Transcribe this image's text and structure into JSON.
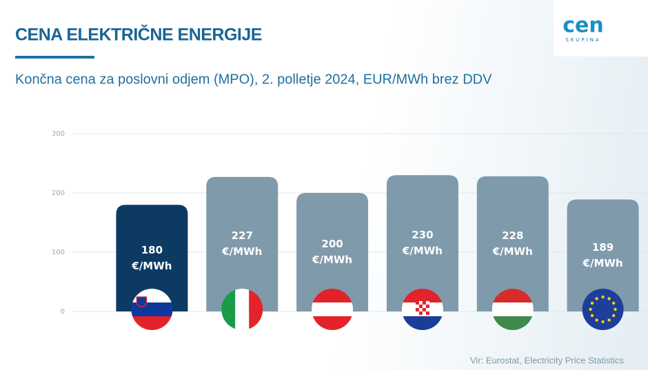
{
  "header": {
    "title": "CENA ELEKTRIČNE ENERGIJE",
    "subtitle": "Končna cena za poslovni odjem (MPO), 2. polletje 2024, EUR/MWh brez DDV",
    "logo": "cen",
    "logo_sub": "SKUPINA"
  },
  "chart_data": {
    "type": "bar",
    "categories": [
      null,
      null,
      null,
      null,
      null,
      null
    ],
    "values": [
      180,
      227,
      200,
      230,
      228,
      189
    ],
    "value_labels": [
      "180 €/MWh",
      "227 €/MWh",
      "200 €/MWh",
      "230 €/MWh",
      "228 €/MWh",
      "189 €/MWh"
    ],
    "colors": [
      "#0d3a63",
      "#7f9aab",
      "#7f9aab",
      "#7f9aab",
      "#7f9aab",
      "#7f9aab"
    ],
    "ylim": [
      0,
      300
    ],
    "yticks": [
      0,
      100,
      200,
      300
    ],
    "grid": true
  },
  "footer": {
    "source": "Vir: Eurostat, Electricity Price Statistics"
  }
}
